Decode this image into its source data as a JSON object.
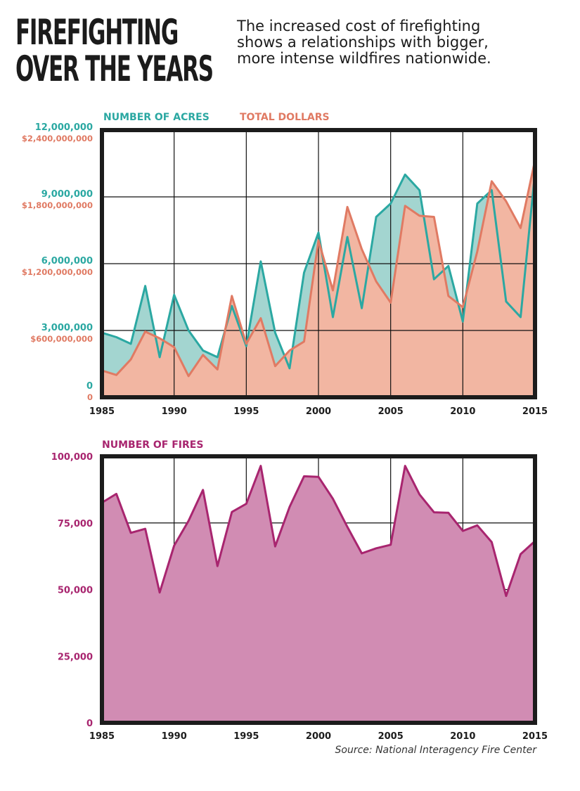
{
  "header": {
    "title_line1": "FIREFIGHTING",
    "title_line2": "OVER THE YEARS",
    "subtitle": "The increased cost of firefighting shows a relationships with bigger, more intense wildfires nationwide."
  },
  "source": "Source: National Interagency Fire Center",
  "colors": {
    "acres": "#2ba8a2",
    "acres_fill": "#a3d5d0",
    "dollars": "#e07a63",
    "dollars_fill": "#f2b6a2",
    "fires": "#a8256f",
    "fires_fill": "#d18cb3",
    "frame": "#1c1c1c"
  },
  "chart_data": [
    {
      "type": "area",
      "x": [
        1985,
        1986,
        1987,
        1988,
        1989,
        1990,
        1991,
        1992,
        1993,
        1994,
        1995,
        1996,
        1997,
        1998,
        1999,
        2000,
        2001,
        2002,
        2003,
        2004,
        2005,
        2006,
        2007,
        2008,
        2009,
        2010,
        2011,
        2012,
        2013,
        2014,
        2015
      ],
      "xticks": [
        1985,
        1990,
        1995,
        2000,
        2005,
        2010,
        2015
      ],
      "xlim": [
        1985,
        2015
      ],
      "series": [
        {
          "name": "NUMBER OF ACRES",
          "axis": "left",
          "values": [
            2900000,
            2700000,
            2400000,
            5000000,
            1800000,
            4600000,
            3000000,
            2100000,
            1800000,
            4100000,
            2300000,
            6100000,
            2900000,
            1300000,
            5600000,
            7400000,
            3600000,
            7200000,
            4000000,
            8100000,
            8700000,
            10000000,
            9300000,
            5300000,
            5900000,
            3400000,
            8700000,
            9300000,
            4300000,
            3600000,
            10100000
          ]
        },
        {
          "name": "TOTAL DOLLARS",
          "axis": "right",
          "values": [
            240000000,
            200000000,
            340000000,
            590000000,
            530000000,
            450000000,
            190000000,
            380000000,
            250000000,
            910000000,
            480000000,
            710000000,
            280000000,
            420000000,
            500000000,
            1410000000,
            960000000,
            1710000000,
            1330000000,
            1040000000,
            850000000,
            1720000000,
            1630000000,
            1620000000,
            910000000,
            810000000,
            1310000000,
            1940000000,
            1760000000,
            1520000000,
            2130000000
          ]
        }
      ],
      "ylim_left": [
        0,
        12000000
      ],
      "ylim_right": [
        0,
        2400000000
      ],
      "yticks_left": [
        "0",
        "3,000,000",
        "6,000,000",
        "9,000,000",
        "12,000,000"
      ],
      "yticks_right": [
        "0",
        "$600,000,000",
        "$1,200,000,000",
        "$1,800,000,000",
        "$2,400,000,000"
      ],
      "grid": true
    },
    {
      "type": "area",
      "x": [
        1985,
        1986,
        1987,
        1988,
        1989,
        1990,
        1991,
        1992,
        1993,
        1994,
        1995,
        1996,
        1997,
        1998,
        1999,
        2000,
        2001,
        2002,
        2003,
        2004,
        2005,
        2006,
        2007,
        2008,
        2009,
        2010,
        2011,
        2012,
        2013,
        2014,
        2015
      ],
      "xticks": [
        1985,
        1990,
        1995,
        2000,
        2005,
        2010,
        2015
      ],
      "xlim": [
        1985,
        2015
      ],
      "series": [
        {
          "name": "NUMBER OF FIRES",
          "values": [
            82600,
            85900,
            71300,
            72800,
            48900,
            66500,
            75800,
            87400,
            58800,
            79100,
            82200,
            96400,
            66200,
            81000,
            92500,
            92300,
            84100,
            73500,
            63600,
            65500,
            66800,
            96400,
            85700,
            79000,
            78800,
            72000,
            74100,
            67800,
            47600,
            63300,
            68200
          ]
        }
      ],
      "ylim": [
        0,
        100000
      ],
      "yticks": [
        "0",
        "25,000",
        "50,000",
        "75,000",
        "100,000"
      ],
      "grid": true
    }
  ]
}
